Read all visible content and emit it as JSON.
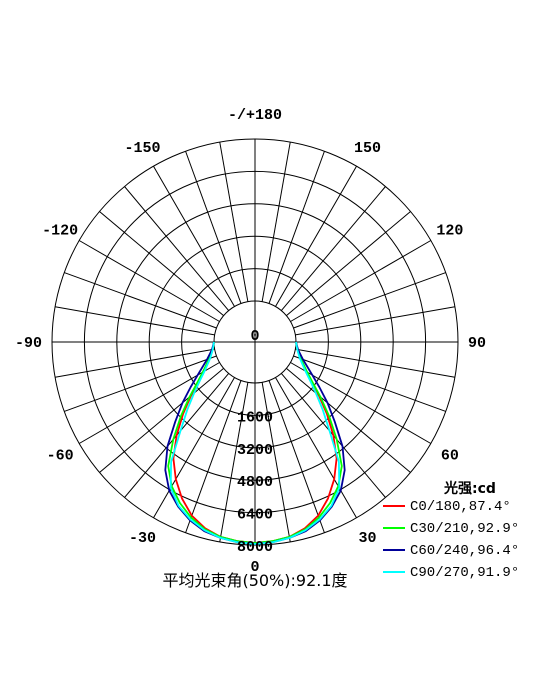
{
  "chart_data": {
    "type": "polar-line",
    "footer": "平均光束角(50%):92.1度",
    "legend_title": "光强:cd",
    "radial_ticks": [
      "0",
      "1600",
      "3200",
      "4800",
      "6400",
      "8000"
    ],
    "radial_values": [
      0,
      1600,
      3200,
      4800,
      6400,
      8000
    ],
    "rmax": 8000,
    "angle_ticks": [
      {
        "angle": 180,
        "label": "-/+180"
      },
      {
        "angle": 150,
        "label": "150"
      },
      {
        "angle": -150,
        "label": "-150"
      },
      {
        "angle": 120,
        "label": "120"
      },
      {
        "angle": -120,
        "label": "-120"
      },
      {
        "angle": 90,
        "label": "90"
      },
      {
        "angle": -90,
        "label": "-90"
      },
      {
        "angle": 60,
        "label": "60"
      },
      {
        "angle": -60,
        "label": "-60"
      },
      {
        "angle": 30,
        "label": "30"
      },
      {
        "angle": -30,
        "label": "-30"
      },
      {
        "angle": 0,
        "label": "0"
      }
    ],
    "series": [
      {
        "name": "C0/180,87.4°",
        "color": "#ff0000",
        "angles": [
          -90,
          -80,
          -70,
          -60,
          -55,
          -50,
          -45,
          -40,
          -35,
          -30,
          -25,
          -20,
          -15,
          -10,
          -5,
          0,
          5,
          10,
          15,
          20,
          25,
          30,
          35,
          40,
          45,
          50,
          55,
          60,
          70,
          80,
          90
        ],
        "values": [
          0,
          90,
          350,
          900,
          1400,
          2100,
          3000,
          4000,
          5000,
          5800,
          6500,
          7100,
          7500,
          7750,
          7850,
          7900,
          7850,
          7750,
          7500,
          7100,
          6500,
          5800,
          5000,
          4000,
          3000,
          2100,
          1400,
          900,
          350,
          90,
          0
        ]
      },
      {
        "name": "C30/210,92.9°",
        "color": "#00ff00",
        "angles": [
          -90,
          -80,
          -70,
          -60,
          -55,
          -50,
          -45,
          -40,
          -35,
          -30,
          -25,
          -20,
          -15,
          -10,
          -5,
          0,
          5,
          10,
          15,
          20,
          25,
          30,
          35,
          40,
          45,
          50,
          55,
          60,
          70,
          80,
          90
        ],
        "values": [
          0,
          100,
          380,
          950,
          1450,
          2200,
          3150,
          4250,
          5450,
          6200,
          6750,
          7200,
          7550,
          7750,
          7850,
          7900,
          7850,
          7750,
          7550,
          7200,
          6750,
          6200,
          5450,
          4250,
          3150,
          2200,
          1450,
          950,
          380,
          100,
          0
        ]
      },
      {
        "name": "C60/240,96.4°",
        "color": "#000099",
        "angles": [
          -90,
          -80,
          -70,
          -60,
          -55,
          -50,
          -45,
          -40,
          -35,
          -30,
          -25,
          -20,
          -15,
          -10,
          -5,
          0,
          5,
          10,
          15,
          20,
          25,
          30,
          35,
          40,
          45,
          50,
          55,
          60,
          70,
          80,
          90
        ],
        "values": [
          0,
          130,
          500,
          1250,
          1850,
          2650,
          3550,
          4700,
          5700,
          6450,
          6950,
          7350,
          7650,
          7800,
          7900,
          7950,
          7900,
          7800,
          7650,
          7350,
          6950,
          6450,
          5700,
          4700,
          3550,
          2650,
          1850,
          1250,
          500,
          130,
          0
        ]
      },
      {
        "name": "C90/270,91.9°",
        "color": "#00ffff",
        "angles": [
          -90,
          -80,
          -70,
          -60,
          -55,
          -50,
          -45,
          -40,
          -35,
          -30,
          -25,
          -20,
          -15,
          -10,
          -5,
          0,
          5,
          10,
          15,
          20,
          25,
          30,
          35,
          40,
          45,
          50,
          55,
          60,
          70,
          80,
          90
        ],
        "values": [
          0,
          90,
          330,
          850,
          1300,
          1900,
          2700,
          3700,
          5200,
          6300,
          6900,
          7300,
          7600,
          7800,
          7900,
          7950,
          7900,
          7800,
          7600,
          7300,
          6900,
          6300,
          5200,
          3700,
          2700,
          1900,
          1300,
          850,
          330,
          90,
          0
        ]
      }
    ]
  }
}
